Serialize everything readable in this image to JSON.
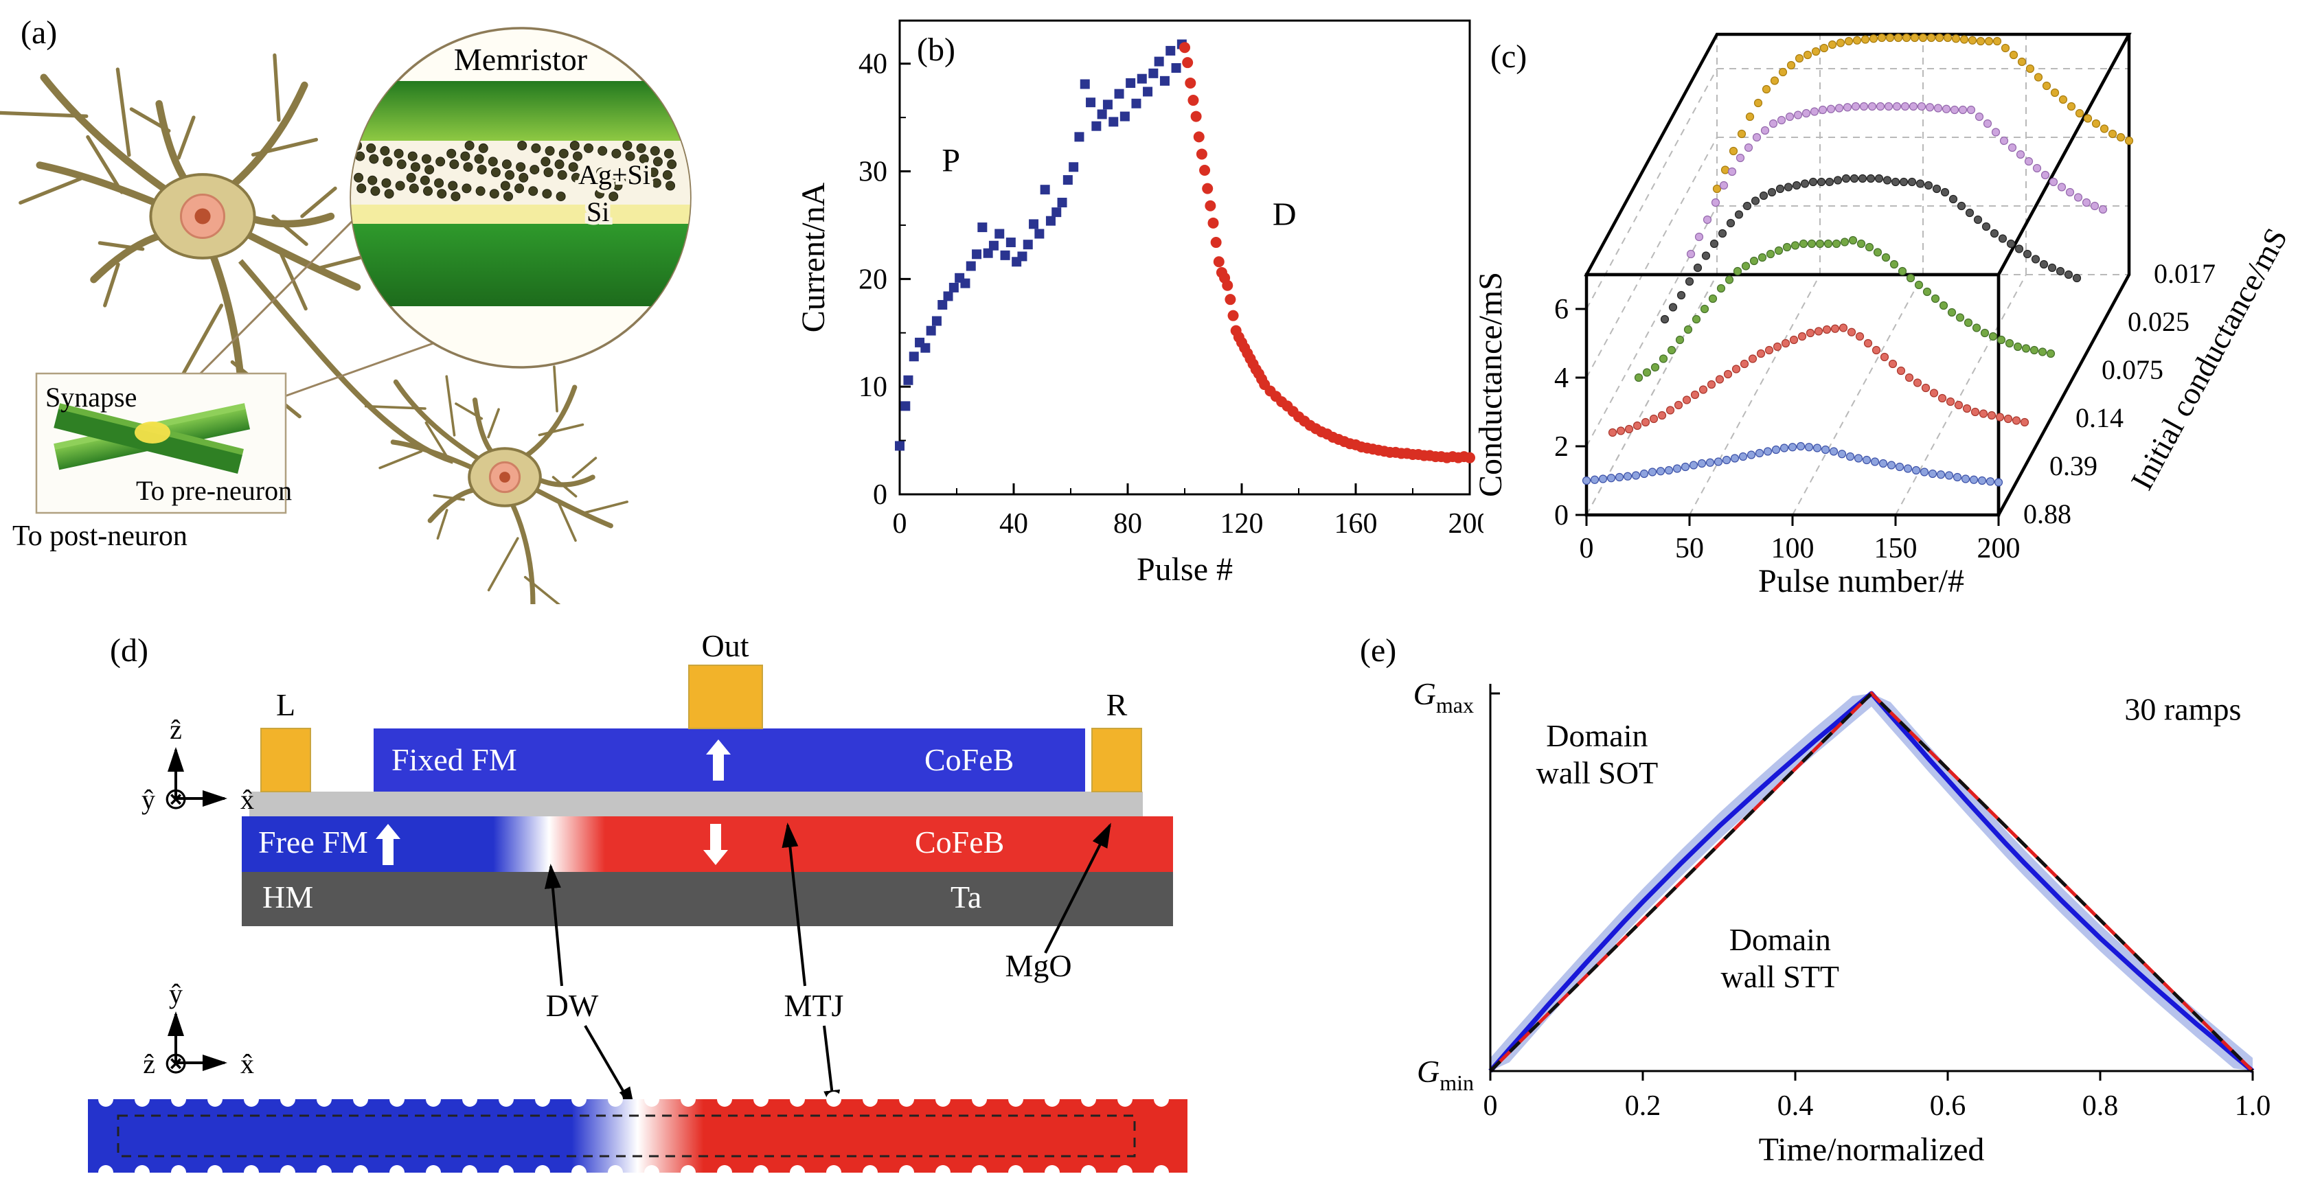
{
  "figure": {
    "panel_a": {
      "label": "(a)",
      "inset_title": "Memristor",
      "layer_ag_si": "Ag+Si",
      "layer_si": "Si",
      "synapse_label": "Synapse",
      "to_pre_neuron": "To pre-neuron",
      "to_post_neuron": "To post-neuron"
    },
    "panel_b": {
      "label": "(b)"
    },
    "panel_c": {
      "label": "(c)"
    },
    "panel_d": {
      "label": "(d)",
      "out_label": "Out",
      "l_label": "L",
      "r_label": "R",
      "fixed_fm": "Fixed FM",
      "cofeb_top": "CoFeB",
      "free_fm": "Free FM",
      "cofeb_bottom": "CoFeB",
      "hm": "HM",
      "ta": "Ta",
      "mgo": "MgO",
      "mtj": "MTJ",
      "dw": "DW",
      "otimes": "⊗",
      "axes_cross": {
        "up": "ẑ",
        "right": "x̂",
        "into": "ŷ"
      },
      "axes_top": {
        "up": "ŷ",
        "right": "x̂",
        "into": "ẑ"
      }
    },
    "panel_e": {
      "label": "(e)"
    }
  },
  "chart_data": [
    {
      "id": "b",
      "type": "scatter",
      "title": "",
      "xlabel": "Pulse #",
      "ylabel": "Current/nA",
      "xlim": [
        0,
        200
      ],
      "ylim": [
        0,
        44
      ],
      "xticks": [
        0,
        40,
        80,
        120,
        160,
        200
      ],
      "yticks": [
        0,
        10,
        20,
        30,
        40
      ],
      "annotations": [
        {
          "text": "P",
          "x": 18,
          "y": 30,
          "color": "#000000"
        },
        {
          "text": "D",
          "x": 135,
          "y": 25,
          "color": "#000000"
        }
      ],
      "series": [
        {
          "name": "potentiation",
          "marker": "square",
          "color": "#2a3490",
          "points": [
            [
              0,
              4.5
            ],
            [
              2,
              8.2
            ],
            [
              3,
              10.6
            ],
            [
              5,
              12.8
            ],
            [
              7,
              14.1
            ],
            [
              9,
              13.6
            ],
            [
              11,
              15.2
            ],
            [
              13,
              16.1
            ],
            [
              15,
              17.6
            ],
            [
              17,
              18.4
            ],
            [
              19,
              19.2
            ],
            [
              21,
              20.1
            ],
            [
              23,
              19.6
            ],
            [
              25,
              21.2
            ],
            [
              27,
              22.3
            ],
            [
              29,
              24.8
            ],
            [
              31,
              22.4
            ],
            [
              33,
              23.1
            ],
            [
              35,
              24.2
            ],
            [
              37,
              22.2
            ],
            [
              39,
              23.4
            ],
            [
              41,
              21.6
            ],
            [
              43,
              22.1
            ],
            [
              45,
              23.2
            ],
            [
              47,
              25.1
            ],
            [
              49,
              24.2
            ],
            [
              51,
              28.3
            ],
            [
              53,
              25.4
            ],
            [
              55,
              26.2
            ],
            [
              57,
              27.1
            ],
            [
              59,
              29.2
            ],
            [
              61,
              30.4
            ],
            [
              63,
              33.2
            ],
            [
              65,
              38.1
            ],
            [
              67,
              36.4
            ],
            [
              69,
              34.2
            ],
            [
              71,
              35.3
            ],
            [
              73,
              36.2
            ],
            [
              75,
              34.6
            ],
            [
              77,
              37.2
            ],
            [
              79,
              35.1
            ],
            [
              81,
              38.2
            ],
            [
              83,
              36.3
            ],
            [
              85,
              38.6
            ],
            [
              87,
              37.4
            ],
            [
              89,
              39.1
            ],
            [
              91,
              40.2
            ],
            [
              93,
              38.4
            ],
            [
              95,
              41.2
            ],
            [
              97,
              39.6
            ],
            [
              99,
              41.8
            ]
          ]
        },
        {
          "name": "depression",
          "marker": "circle",
          "color": "#d92f22",
          "points": [
            [
              100,
              41.5
            ],
            [
              101,
              40.1
            ],
            [
              102,
              38.2
            ],
            [
              103,
              36.6
            ],
            [
              104,
              35.1
            ],
            [
              105,
              33.2
            ],
            [
              106,
              31.6
            ],
            [
              107,
              30.1
            ],
            [
              108,
              28.4
            ],
            [
              109,
              26.8
            ],
            [
              110,
              25.2
            ],
            [
              111,
              23.4
            ],
            [
              112,
              21.6
            ],
            [
              113,
              20.6
            ],
            [
              114,
              20.1
            ],
            [
              115,
              19.4
            ],
            [
              116,
              18.1
            ],
            [
              117,
              16.6
            ],
            [
              118,
              15.2
            ],
            [
              119,
              14.6
            ],
            [
              120,
              14.1
            ],
            [
              121,
              13.6
            ],
            [
              122,
              13.1
            ],
            [
              123,
              12.6
            ],
            [
              124,
              12.1
            ],
            [
              125,
              11.6
            ],
            [
              126,
              11.2
            ],
            [
              127,
              10.7
            ],
            [
              128,
              10.2
            ],
            [
              130,
              9.6
            ],
            [
              132,
              9.1
            ],
            [
              134,
              8.6
            ],
            [
              136,
              8.2
            ],
            [
              138,
              7.7
            ],
            [
              140,
              7.2
            ],
            [
              142,
              6.8
            ],
            [
              144,
              6.4
            ],
            [
              146,
              6.1
            ],
            [
              148,
              5.8
            ],
            [
              150,
              5.6
            ],
            [
              152,
              5.3
            ],
            [
              154,
              5.1
            ],
            [
              156,
              4.9
            ],
            [
              158,
              4.7
            ],
            [
              160,
              4.6
            ],
            [
              162,
              4.4
            ],
            [
              164,
              4.3
            ],
            [
              166,
              4.2
            ],
            [
              168,
              4.1
            ],
            [
              170,
              4.0
            ],
            [
              172,
              3.9
            ],
            [
              174,
              3.9
            ],
            [
              176,
              3.8
            ],
            [
              178,
              3.8
            ],
            [
              180,
              3.7
            ],
            [
              182,
              3.7
            ],
            [
              184,
              3.6
            ],
            [
              186,
              3.6
            ],
            [
              188,
              3.5
            ],
            [
              190,
              3.5
            ],
            [
              192,
              3.4
            ],
            [
              194,
              3.5
            ],
            [
              196,
              3.4
            ],
            [
              198,
              3.5
            ],
            [
              200,
              3.4
            ]
          ]
        }
      ]
    },
    {
      "id": "c",
      "type": "scatter3d",
      "title": "",
      "xlabel": "Pulse number/#",
      "ylabel": "Conductance/mS",
      "zlabel": "Initial conductance/mS",
      "xlim": [
        0,
        200
      ],
      "ylim": [
        0,
        7
      ],
      "xticks": [
        0,
        50,
        100,
        150,
        200
      ],
      "yticks": [
        0,
        2,
        4,
        6
      ],
      "pulse_start": 0,
      "pulse_step": 8,
      "series": [
        {
          "name": "0.88",
          "depth": 0,
          "color": "#8ea3de",
          "edge": "#3d52a8",
          "values": [
            1.0,
            1.05,
            1.1,
            1.15,
            1.25,
            1.3,
            1.4,
            1.5,
            1.55,
            1.65,
            1.75,
            1.85,
            1.95,
            2.0,
            1.95,
            1.85,
            1.7,
            1.6,
            1.5,
            1.4,
            1.3,
            1.2,
            1.15,
            1.05,
            1.0,
            0.95
          ]
        },
        {
          "name": "0.39",
          "depth": 1,
          "color": "#e06c62",
          "edge": "#a8362c",
          "values": [
            1.0,
            1.1,
            1.3,
            1.5,
            1.8,
            2.1,
            2.4,
            2.7,
            3.0,
            3.3,
            3.5,
            3.7,
            3.9,
            4.0,
            4.05,
            3.8,
            3.4,
            3.0,
            2.6,
            2.3,
            2.0,
            1.8,
            1.6,
            1.5,
            1.4,
            1.3
          ]
        },
        {
          "name": "0.14",
          "depth": 2,
          "color": "#74a844",
          "edge": "#45702a",
          "values": [
            1.2,
            1.5,
            2.0,
            2.6,
            3.2,
            3.8,
            4.3,
            4.6,
            4.8,
            5.0,
            5.1,
            5.1,
            5.1,
            5.2,
            5.0,
            4.7,
            4.3,
            3.9,
            3.5,
            3.1,
            2.8,
            2.5,
            2.3,
            2.1,
            2.0,
            1.9
          ]
        },
        {
          "name": "0.075",
          "depth": 3,
          "color": "#565656",
          "edge": "#222222",
          "values": [
            1.5,
            2.2,
            3.0,
            3.7,
            4.3,
            4.8,
            5.1,
            5.3,
            5.4,
            5.5,
            5.5,
            5.6,
            5.6,
            5.6,
            5.5,
            5.5,
            5.4,
            5.2,
            4.8,
            4.4,
            4.0,
            3.7,
            3.4,
            3.1,
            2.9,
            2.7
          ]
        },
        {
          "name": "0.025",
          "depth": 4,
          "color": "#cda5de",
          "edge": "#9468ac",
          "values": [
            2.0,
            3.0,
            4.0,
            4.8,
            5.4,
            5.8,
            6.0,
            6.1,
            6.2,
            6.25,
            6.3,
            6.3,
            6.3,
            6.3,
            6.3,
            6.25,
            6.2,
            6.2,
            5.8,
            5.3,
            4.9,
            4.5,
            4.1,
            3.8,
            3.5,
            3.3
          ]
        },
        {
          "name": "0.017",
          "depth": 5,
          "color": "#ddab2c",
          "edge": "#a87c0e",
          "values": [
            2.5,
            3.6,
            4.6,
            5.4,
            5.9,
            6.3,
            6.5,
            6.7,
            6.8,
            6.85,
            6.9,
            6.9,
            6.9,
            6.9,
            6.9,
            6.85,
            6.8,
            6.8,
            6.4,
            6.0,
            5.5,
            5.1,
            4.7,
            4.4,
            4.1,
            3.9
          ]
        }
      ]
    },
    {
      "id": "e",
      "type": "line",
      "title": "",
      "xlabel": "Time/normalized",
      "ylabels": {
        "top_main": "G",
        "top_sub": "max",
        "bottom_main": "G",
        "bottom_sub": "min"
      },
      "xlim": [
        0,
        1
      ],
      "ylim": [
        0,
        1
      ],
      "xticks": [
        0,
        0.2,
        0.4,
        0.6,
        0.8,
        1.0
      ],
      "xtick_labels": [
        "0",
        "0.2",
        "0.4",
        "0.6",
        "0.8",
        "1.0"
      ],
      "annotation": {
        "text": "30 ramps",
        "x": 0.985,
        "y": 0.93,
        "color": "#000000"
      },
      "x": [
        0,
        0.025,
        0.05,
        0.075,
        0.1,
        0.125,
        0.15,
        0.175,
        0.2,
        0.225,
        0.25,
        0.275,
        0.3,
        0.325,
        0.35,
        0.375,
        0.4,
        0.425,
        0.45,
        0.475,
        0.5,
        0.525,
        0.55,
        0.575,
        0.6,
        0.625,
        0.65,
        0.675,
        0.7,
        0.725,
        0.75,
        0.775,
        0.8,
        0.825,
        0.85,
        0.875,
        0.9,
        0.925,
        0.95,
        0.975,
        1
      ],
      "series": [
        {
          "name": "Domain wall SOT",
          "color": "#1818d8",
          "band_color": "#9fafe6",
          "band": 0.035,
          "y": [
            0,
            0.058,
            0.115,
            0.173,
            0.229,
            0.285,
            0.34,
            0.395,
            0.448,
            0.499,
            0.55,
            0.599,
            0.648,
            0.694,
            0.74,
            0.785,
            0.829,
            0.873,
            0.915,
            0.958,
            1,
            0.942,
            0.885,
            0.827,
            0.771,
            0.715,
            0.66,
            0.605,
            0.552,
            0.501,
            0.45,
            0.401,
            0.352,
            0.306,
            0.26,
            0.215,
            0.171,
            0.127,
            0.085,
            0.042,
            0
          ]
        },
        {
          "name": "Domain wall STT",
          "color": "#e01f1f",
          "dash_overlay": "#111111",
          "y": [
            0,
            0.05,
            0.1,
            0.15,
            0.2,
            0.25,
            0.3,
            0.35,
            0.4,
            0.45,
            0.5,
            0.55,
            0.6,
            0.65,
            0.7,
            0.75,
            0.8,
            0.85,
            0.9,
            0.95,
            1,
            0.95,
            0.9,
            0.85,
            0.8,
            0.75,
            0.7,
            0.65,
            0.6,
            0.55,
            0.5,
            0.45,
            0.4,
            0.35,
            0.3,
            0.25,
            0.2,
            0.15,
            0.1,
            0.05,
            0
          ]
        }
      ],
      "legend": [
        {
          "text": "Domain\nwall SOT",
          "x": 0.14,
          "y": 0.86,
          "color": "#1818d8"
        },
        {
          "text": "Domain\nwall STT",
          "x": 0.38,
          "y": 0.32,
          "color": "#e01f1f"
        }
      ]
    }
  ]
}
